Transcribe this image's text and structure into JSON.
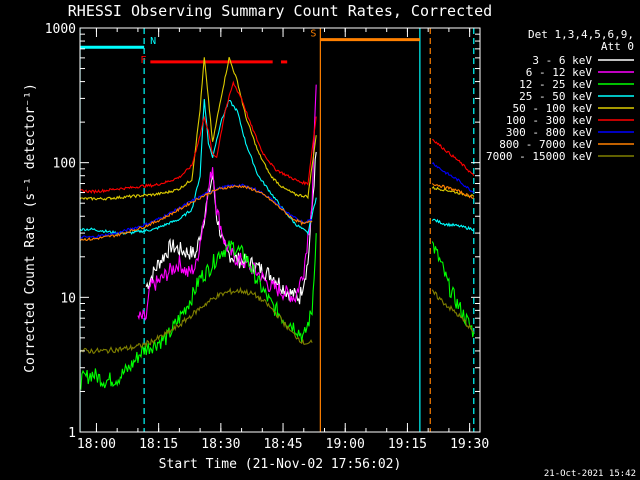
{
  "chart_data": {
    "type": "line",
    "title": "RHESSI Observing Summary Count Rates, Corrected",
    "xlabel": "Start Time (21-Nov-02 17:56:02)",
    "ylabel": "Corrected Count Rate (s⁻¹ detector⁻¹)",
    "yscale": "log",
    "ylim": [
      1,
      1000
    ],
    "xlim": [
      "17:56:02",
      "19:32:30"
    ],
    "x_ticks": [
      "18:00",
      "18:15",
      "18:30",
      "18:45",
      "19:00",
      "19:15",
      "19:30"
    ],
    "y_ticks": [
      "1",
      "10",
      "100",
      "1000"
    ],
    "legend_header": [
      "Det 1,3,4,5,6,9,",
      "Att 0"
    ],
    "legend_placement": "right",
    "timestamp": "21-Oct-2021 15:42",
    "annotations": [
      {
        "label": "N",
        "color": "#00ffff",
        "times": [
          "17:56:02",
          "18:11:30"
        ],
        "level": 720
      },
      {
        "label": "F",
        "color": "#ff0000",
        "times": [
          "18:13:00",
          "18:42:30"
        ],
        "level": 560
      },
      {
        "label": "S",
        "color": "#ff8000",
        "times": [
          "18:54:00",
          "19:18:00"
        ],
        "level": 820
      }
    ],
    "markers": [
      {
        "time": "17:56:02",
        "color": "#00ffff",
        "style": "solid"
      },
      {
        "time": "18:11:30",
        "color": "#00ffff",
        "style": "dashed"
      },
      {
        "time": "18:54:00",
        "color": "#ff8000",
        "style": "solid"
      },
      {
        "time": "19:18:00",
        "color": "#00ffff",
        "style": "solid"
      },
      {
        "time": "19:20:30",
        "color": "#ff8000",
        "style": "dashed"
      },
      {
        "time": "19:31:00",
        "color": "#00ffff",
        "style": "dashed"
      }
    ],
    "series": [
      {
        "name": "3 - 6 keV",
        "color": "#ffffff",
        "points": [
          [
            "18:12",
            12
          ],
          [
            "18:15",
            18
          ],
          [
            "18:18",
            24
          ],
          [
            "18:21",
            22
          ],
          [
            "18:24",
            21
          ],
          [
            "18:26",
            40
          ],
          [
            "18:28",
            80
          ],
          [
            "18:29",
            40
          ],
          [
            "18:31",
            22
          ],
          [
            "18:34",
            19
          ],
          [
            "18:37",
            18
          ],
          [
            "18:40",
            16
          ],
          [
            "18:43",
            14
          ],
          [
            "18:46",
            11
          ],
          [
            "18:49",
            10
          ],
          [
            "18:51",
            18
          ],
          [
            "18:53",
            120
          ]
        ]
      },
      {
        "name": "6 - 12 keV",
        "color": "#ff00ff",
        "points": [
          [
            "18:10",
            7
          ],
          [
            "18:12",
            7
          ],
          [
            "18:13",
            12
          ],
          [
            "18:15",
            13
          ],
          [
            "18:17",
            15
          ],
          [
            "18:20",
            18
          ],
          [
            "18:22",
            15
          ],
          [
            "18:24",
            17
          ],
          [
            "18:26",
            40
          ],
          [
            "18:28",
            95
          ],
          [
            "18:29",
            45
          ],
          [
            "18:31",
            25
          ],
          [
            "18:33",
            20
          ],
          [
            "18:36",
            18
          ],
          [
            "18:39",
            15
          ],
          [
            "18:42",
            12
          ],
          [
            "18:45",
            11
          ],
          [
            "18:48",
            10
          ],
          [
            "18:50",
            16
          ],
          [
            "18:52",
            50
          ],
          [
            "18:53",
            380
          ]
        ]
      },
      {
        "name": "12 - 25 keV",
        "color": "#00ff00",
        "points": [
          [
            "17:56",
            2.4
          ],
          [
            "17:59",
            2.7
          ],
          [
            "18:02",
            2.4
          ],
          [
            "18:05",
            2.5
          ],
          [
            "18:08",
            3
          ],
          [
            "18:11",
            4
          ],
          [
            "18:14",
            4.5
          ],
          [
            "18:17",
            5
          ],
          [
            "18:20",
            7
          ],
          [
            "18:23",
            10
          ],
          [
            "18:25",
            14
          ],
          [
            "18:27",
            16
          ],
          [
            "18:30",
            22
          ],
          [
            "18:33",
            24
          ],
          [
            "18:36",
            20
          ],
          [
            "18:39",
            13
          ],
          [
            "18:42",
            9
          ],
          [
            "18:45",
            7
          ],
          [
            "18:48",
            6
          ],
          [
            "18:50",
            5
          ],
          [
            "18:52",
            8
          ],
          [
            "18:53",
            30
          ],
          null,
          [
            "19:21",
            25
          ],
          [
            "19:23",
            18
          ],
          [
            "19:25",
            12
          ],
          [
            "19:27",
            9
          ],
          [
            "19:29",
            7
          ],
          [
            "19:31",
            5.5
          ]
        ]
      },
      {
        "name": "25 - 50 keV",
        "color": "#00ffff",
        "points": [
          [
            "17:56",
            32
          ],
          [
            "17:59",
            32
          ],
          [
            "18:02",
            31
          ],
          [
            "18:05",
            30
          ],
          [
            "18:08",
            30
          ],
          [
            "18:11",
            31
          ],
          [
            "18:14",
            32
          ],
          [
            "18:17",
            35
          ],
          [
            "18:20",
            38
          ],
          [
            "18:23",
            45
          ],
          [
            "18:25",
            80
          ],
          [
            "18:26",
            300
          ],
          [
            "18:27",
            140
          ],
          [
            "18:28",
            110
          ],
          [
            "18:30",
            200
          ],
          [
            "18:32",
            290
          ],
          [
            "18:34",
            240
          ],
          [
            "18:36",
            140
          ],
          [
            "18:39",
            80
          ],
          [
            "18:42",
            60
          ],
          [
            "18:45",
            45
          ],
          [
            "18:48",
            35
          ],
          [
            "18:51",
            30
          ],
          [
            "18:53",
            55
          ],
          null,
          [
            "19:21",
            38
          ],
          [
            "19:24",
            35
          ],
          [
            "19:27",
            34
          ],
          [
            "19:29",
            33
          ],
          [
            "19:31",
            32
          ]
        ]
      },
      {
        "name": "50 - 100 keV",
        "color": "#ddcc00",
        "points": [
          [
            "17:56",
            54
          ],
          [
            "17:59",
            54
          ],
          [
            "18:02",
            54
          ],
          [
            "18:05",
            55
          ],
          [
            "18:08",
            56
          ],
          [
            "18:11",
            57
          ],
          [
            "18:14",
            58
          ],
          [
            "18:17",
            60
          ],
          [
            "18:20",
            64
          ],
          [
            "18:23",
            75
          ],
          [
            "18:25",
            250
          ],
          [
            "18:26",
            600
          ],
          [
            "18:27",
            300
          ],
          [
            "18:28",
            140
          ],
          [
            "18:30",
            300
          ],
          [
            "18:32",
            600
          ],
          [
            "18:34",
            400
          ],
          [
            "18:36",
            220
          ],
          [
            "18:39",
            120
          ],
          [
            "18:42",
            80
          ],
          [
            "18:45",
            65
          ],
          [
            "18:48",
            58
          ],
          [
            "18:51",
            56
          ],
          [
            "18:53",
            160
          ],
          null,
          [
            "19:21",
            65
          ],
          [
            "19:24",
            63
          ],
          [
            "19:27",
            60
          ],
          [
            "19:29",
            58
          ],
          [
            "19:31",
            56
          ]
        ]
      },
      {
        "name": "100 - 300 keV",
        "color": "#ff0000",
        "points": [
          [
            "17:56",
            62
          ],
          [
            "17:59",
            61
          ],
          [
            "18:02",
            62
          ],
          [
            "18:05",
            64
          ],
          [
            "18:08",
            65
          ],
          [
            "18:11",
            67
          ],
          [
            "18:14",
            68
          ],
          [
            "18:17",
            72
          ],
          [
            "18:20",
            78
          ],
          [
            "18:23",
            95
          ],
          [
            "18:25",
            160
          ],
          [
            "18:26",
            220
          ],
          [
            "18:27",
            170
          ],
          [
            "18:28",
            115
          ],
          [
            "18:29",
            110
          ],
          [
            "18:31",
            240
          ],
          [
            "18:33",
            390
          ],
          [
            "18:35",
            300
          ],
          [
            "18:37",
            200
          ],
          [
            "18:40",
            120
          ],
          [
            "18:43",
            90
          ],
          [
            "18:46",
            80
          ],
          [
            "18:49",
            72
          ],
          [
            "18:51",
            70
          ],
          [
            "18:53",
            220
          ],
          null,
          [
            "19:21",
            150
          ],
          [
            "19:24",
            125
          ],
          [
            "19:27",
            105
          ],
          [
            "19:29",
            92
          ],
          [
            "19:31",
            80
          ]
        ]
      },
      {
        "name": "300 - 800 keV",
        "color": "#0000ff",
        "points": [
          [
            "17:56",
            28
          ],
          [
            "17:59",
            28
          ],
          [
            "18:02",
            29
          ],
          [
            "18:05",
            30
          ],
          [
            "18:08",
            32
          ],
          [
            "18:11",
            34
          ],
          [
            "18:14",
            37
          ],
          [
            "18:17",
            41
          ],
          [
            "18:20",
            46
          ],
          [
            "18:23",
            52
          ],
          [
            "18:26",
            58
          ],
          [
            "18:29",
            64
          ],
          [
            "18:32",
            67
          ],
          [
            "18:35",
            68
          ],
          [
            "18:38",
            64
          ],
          [
            "18:41",
            57
          ],
          [
            "18:44",
            48
          ],
          [
            "18:47",
            40
          ],
          [
            "18:50",
            36
          ],
          [
            "18:52",
            38
          ],
          null,
          [
            "19:21",
            100
          ],
          [
            "19:24",
            85
          ],
          [
            "19:27",
            75
          ],
          [
            "19:29",
            67
          ],
          [
            "19:31",
            60
          ]
        ]
      },
      {
        "name": "800 - 7000 keV",
        "color": "#ff8000",
        "points": [
          [
            "17:56",
            27
          ],
          [
            "17:59",
            27
          ],
          [
            "18:02",
            28
          ],
          [
            "18:05",
            29
          ],
          [
            "18:08",
            31
          ],
          [
            "18:11",
            33
          ],
          [
            "18:14",
            36
          ],
          [
            "18:17",
            40
          ],
          [
            "18:20",
            45
          ],
          [
            "18:23",
            51
          ],
          [
            "18:26",
            57
          ],
          [
            "18:29",
            63
          ],
          [
            "18:32",
            66
          ],
          [
            "18:35",
            67
          ],
          [
            "18:38",
            63
          ],
          [
            "18:41",
            56
          ],
          [
            "18:44",
            47
          ],
          [
            "18:47",
            39
          ],
          [
            "18:50",
            35
          ],
          [
            "18:52",
            37
          ],
          null,
          [
            "19:21",
            70
          ],
          [
            "19:24",
            66
          ],
          [
            "19:27",
            62
          ],
          [
            "19:29",
            58
          ],
          [
            "19:31",
            55
          ]
        ]
      },
      {
        "name": "7000 - 15000 keV",
        "color": "#808000",
        "points": [
          [
            "17:56",
            4
          ],
          [
            "17:59",
            4
          ],
          [
            "18:02",
            4
          ],
          [
            "18:05",
            4.1
          ],
          [
            "18:08",
            4.2
          ],
          [
            "18:11",
            4.4
          ],
          [
            "18:14",
            4.8
          ],
          [
            "18:17",
            5.4
          ],
          [
            "18:20",
            6.2
          ],
          [
            "18:23",
            7.4
          ],
          [
            "18:26",
            8.8
          ],
          [
            "18:29",
            10.2
          ],
          [
            "18:32",
            11
          ],
          [
            "18:35",
            11.2
          ],
          [
            "18:38",
            10.5
          ],
          [
            "18:41",
            9
          ],
          [
            "18:44",
            7.2
          ],
          [
            "18:47",
            5.5
          ],
          [
            "18:50",
            4.6
          ],
          [
            "18:52",
            4.6
          ],
          null,
          [
            "19:21",
            11
          ],
          [
            "19:24",
            9
          ],
          [
            "19:27",
            7.5
          ],
          [
            "19:29",
            6.5
          ],
          [
            "19:31",
            5.5
          ]
        ]
      }
    ]
  }
}
